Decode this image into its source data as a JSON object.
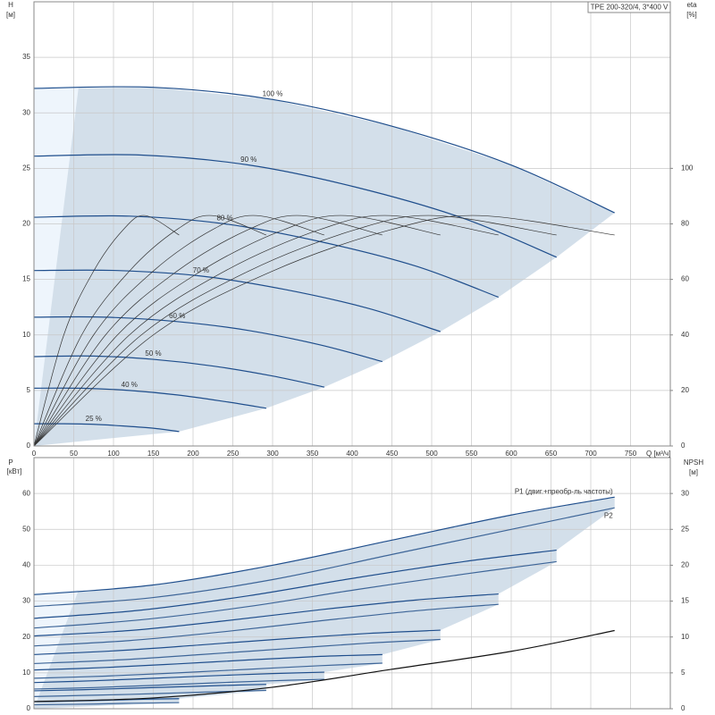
{
  "chart_data": [
    {
      "type": "line",
      "title": "TPE 200-320/4, 3*400 V",
      "ylabel": "H",
      "yunit": "[м]",
      "y2label": "eta",
      "y2unit": "[%]",
      "xlabel": "Q [м³/ч]",
      "xlim": [
        0,
        800
      ],
      "xticks": [
        0,
        50,
        100,
        150,
        200,
        250,
        300,
        350,
        400,
        450,
        500,
        550,
        600,
        650,
        700,
        750
      ],
      "ylim": [
        0,
        40
      ],
      "yticks": [
        0,
        5,
        10,
        15,
        20,
        25,
        30,
        35
      ],
      "y2lim": [
        0,
        160
      ],
      "y2ticks": [
        0,
        20,
        40,
        60,
        80,
        100
      ],
      "grid": true,
      "shade_color": "#d3dfea",
      "series": [
        {
          "name": "100 %",
          "color": "#1f4e8c",
          "x": [
            0,
            150,
            300,
            450,
            600,
            730
          ],
          "values": [
            32.2,
            32.3,
            31.2,
            28.8,
            25.3,
            21.0
          ]
        },
        {
          "name": "90 %",
          "color": "#1f4e8c",
          "x": [
            0,
            135,
            270,
            405,
            540,
            657
          ],
          "values": [
            26.1,
            26.2,
            25.3,
            23.3,
            20.5,
            17.0
          ]
        },
        {
          "name": "80 %",
          "color": "#1f4e8c",
          "x": [
            0,
            120,
            240,
            360,
            480,
            584
          ],
          "values": [
            20.6,
            20.7,
            20.0,
            18.4,
            16.2,
            13.4
          ]
        },
        {
          "name": "70 %",
          "color": "#1f4e8c",
          "x": [
            0,
            105,
            210,
            315,
            420,
            511
          ],
          "values": [
            15.8,
            15.8,
            15.3,
            14.1,
            12.4,
            10.3
          ]
        },
        {
          "name": "60 %",
          "color": "#1f4e8c",
          "x": [
            0,
            90,
            180,
            270,
            360,
            438
          ],
          "values": [
            11.6,
            11.6,
            11.2,
            10.4,
            9.1,
            7.6
          ]
        },
        {
          "name": "50 %",
          "color": "#1f4e8c",
          "x": [
            0,
            75,
            150,
            225,
            300,
            365
          ],
          "values": [
            8.05,
            8.1,
            7.8,
            7.2,
            6.3,
            5.3
          ]
        },
        {
          "name": "40 %",
          "color": "#1f4e8c",
          "x": [
            0,
            60,
            120,
            180,
            240,
            292
          ],
          "values": [
            5.2,
            5.2,
            5.0,
            4.6,
            4.0,
            3.4
          ]
        },
        {
          "name": "25 %",
          "color": "#1f4e8c",
          "x": [
            0,
            37.5,
            75,
            112.5,
            150,
            182.5
          ],
          "values": [
            2.0,
            2.0,
            1.95,
            1.8,
            1.6,
            1.3
          ]
        },
        {
          "axis": "y2",
          "color": "#333333",
          "x": [
            0,
            150,
            300,
            450,
            560,
            730
          ],
          "values": [
            0,
            40,
            63,
            78,
            83,
            76
          ]
        },
        {
          "axis": "y2",
          "color": "#333333",
          "x": [
            0,
            135,
            270,
            405,
            504,
            657
          ],
          "values": [
            0,
            40,
            63,
            78,
            83,
            76
          ]
        },
        {
          "axis": "y2",
          "color": "#333333",
          "x": [
            0,
            120,
            240,
            360,
            448,
            584
          ],
          "values": [
            0,
            40,
            63,
            78,
            83,
            76
          ]
        },
        {
          "axis": "y2",
          "color": "#333333",
          "x": [
            0,
            105,
            210,
            315,
            392,
            511
          ],
          "values": [
            0,
            40,
            63,
            78,
            83,
            76
          ]
        },
        {
          "axis": "y2",
          "color": "#333333",
          "x": [
            0,
            90,
            180,
            270,
            336,
            438
          ],
          "values": [
            0,
            40,
            63,
            78,
            83,
            76
          ]
        },
        {
          "axis": "y2",
          "color": "#333333",
          "x": [
            0,
            75,
            150,
            225,
            280,
            365
          ],
          "values": [
            0,
            40,
            63,
            78,
            83,
            76
          ]
        },
        {
          "axis": "y2",
          "color": "#333333",
          "x": [
            0,
            60,
            120,
            180,
            224,
            292
          ],
          "values": [
            0,
            40,
            63,
            78,
            83,
            76
          ]
        },
        {
          "axis": "y2",
          "color": "#333333",
          "x": [
            0,
            37.5,
            75,
            112.5,
            140,
            182.5
          ],
          "values": [
            0,
            40,
            63,
            78,
            83,
            76
          ]
        }
      ]
    },
    {
      "type": "line",
      "ylabel": "P",
      "yunit": "[кВт]",
      "y2label": "NPSH",
      "y2unit": "[м]",
      "xlim": [
        0,
        800
      ],
      "xticks": [
        0,
        50,
        100,
        150,
        200,
        250,
        300,
        350,
        400,
        450,
        500,
        550,
        600,
        650,
        700,
        750
      ],
      "ylim": [
        0,
        70
      ],
      "yticks": [
        0,
        10,
        20,
        30,
        40,
        50,
        60
      ],
      "y2lim": [
        0,
        35
      ],
      "y2ticks": [
        0,
        5,
        10,
        15,
        20,
        25,
        30
      ],
      "grid": true,
      "shade_color": "#d3dfea",
      "series": [
        {
          "name": "P1 (двиг.+преобр-ль частоты)",
          "color": "#1f4e8c",
          "x": [
            0,
            150,
            300,
            450,
            600,
            730
          ],
          "values": [
            31.8,
            34.5,
            40,
            47,
            54,
            59
          ]
        },
        {
          "color": "#1f4e8c",
          "x": [
            0,
            135,
            270,
            405,
            540,
            657
          ],
          "values": [
            25.2,
            27.5,
            31.5,
            36.5,
            41,
            44.2
          ]
        },
        {
          "color": "#1f4e8c",
          "x": [
            0,
            120,
            240,
            360,
            480,
            584
          ],
          "values": [
            20.3,
            21.8,
            24.5,
            27.6,
            30.3,
            32
          ]
        },
        {
          "color": "#1f4e8c",
          "x": [
            0,
            105,
            210,
            315,
            420,
            511
          ],
          "values": [
            15.1,
            16.2,
            17.8,
            19.5,
            21,
            21.9
          ]
        },
        {
          "color": "#1f4e8c",
          "x": [
            0,
            90,
            180,
            270,
            360,
            438
          ],
          "values": [
            10.8,
            11.5,
            12.5,
            13.6,
            14.6,
            15.1
          ]
        },
        {
          "color": "#1f4e8c",
          "x": [
            0,
            75,
            150,
            225,
            300,
            365
          ],
          "values": [
            7.3,
            7.8,
            8.5,
            9.2,
            9.8,
            10.2
          ]
        },
        {
          "color": "#1f4e8c",
          "x": [
            0,
            60,
            120,
            180,
            240,
            292
          ],
          "values": [
            5,
            5.3,
            5.7,
            6.1,
            6.5,
            6.8
          ]
        },
        {
          "color": "#1f4e8c",
          "x": [
            0,
            37.5,
            75,
            112.5,
            150,
            182.5
          ],
          "values": [
            2,
            2.1,
            2.3,
            2.5,
            2.7,
            2.8
          ]
        },
        {
          "name": "P2",
          "color": "#3d6598",
          "x": [
            0,
            150,
            300,
            450,
            600,
            730
          ],
          "values": [
            28.5,
            31,
            36,
            43,
            50,
            56
          ]
        },
        {
          "color": "#3d6598",
          "x": [
            0,
            135,
            270,
            405,
            540,
            657
          ],
          "values": [
            22.5,
            24.8,
            28.5,
            33.2,
            37.5,
            41
          ]
        },
        {
          "color": "#3d6598",
          "x": [
            0,
            120,
            240,
            360,
            480,
            584
          ],
          "values": [
            17.5,
            19,
            21.5,
            24.5,
            27.3,
            29.1
          ]
        },
        {
          "color": "#3d6598",
          "x": [
            0,
            105,
            210,
            315,
            420,
            511
          ],
          "values": [
            12.6,
            13.6,
            15.1,
            16.7,
            18.3,
            19.3
          ]
        },
        {
          "color": "#3d6598",
          "x": [
            0,
            90,
            180,
            270,
            360,
            438
          ],
          "values": [
            8.5,
            9.1,
            10,
            11,
            12,
            12.7
          ]
        },
        {
          "color": "#3d6598",
          "x": [
            0,
            75,
            150,
            225,
            300,
            365
          ],
          "values": [
            5.5,
            5.9,
            6.5,
            7.2,
            7.8,
            8.2
          ]
        },
        {
          "color": "#3d6598",
          "x": [
            0,
            60,
            120,
            180,
            240,
            292
          ],
          "values": [
            3.4,
            3.7,
            4.0,
            4.4,
            4.8,
            5.1
          ]
        },
        {
          "color": "#3d6598",
          "x": [
            0,
            37.5,
            75,
            112.5,
            150,
            182.5
          ],
          "values": [
            1.1,
            1.2,
            1.3,
            1.5,
            1.6,
            1.7
          ]
        },
        {
          "axis": "y2",
          "color": "#111111",
          "x": [
            0,
            150,
            300,
            450,
            600,
            730
          ],
          "values": [
            1,
            1.5,
            3,
            5.5,
            8,
            10.9
          ]
        }
      ]
    }
  ]
}
